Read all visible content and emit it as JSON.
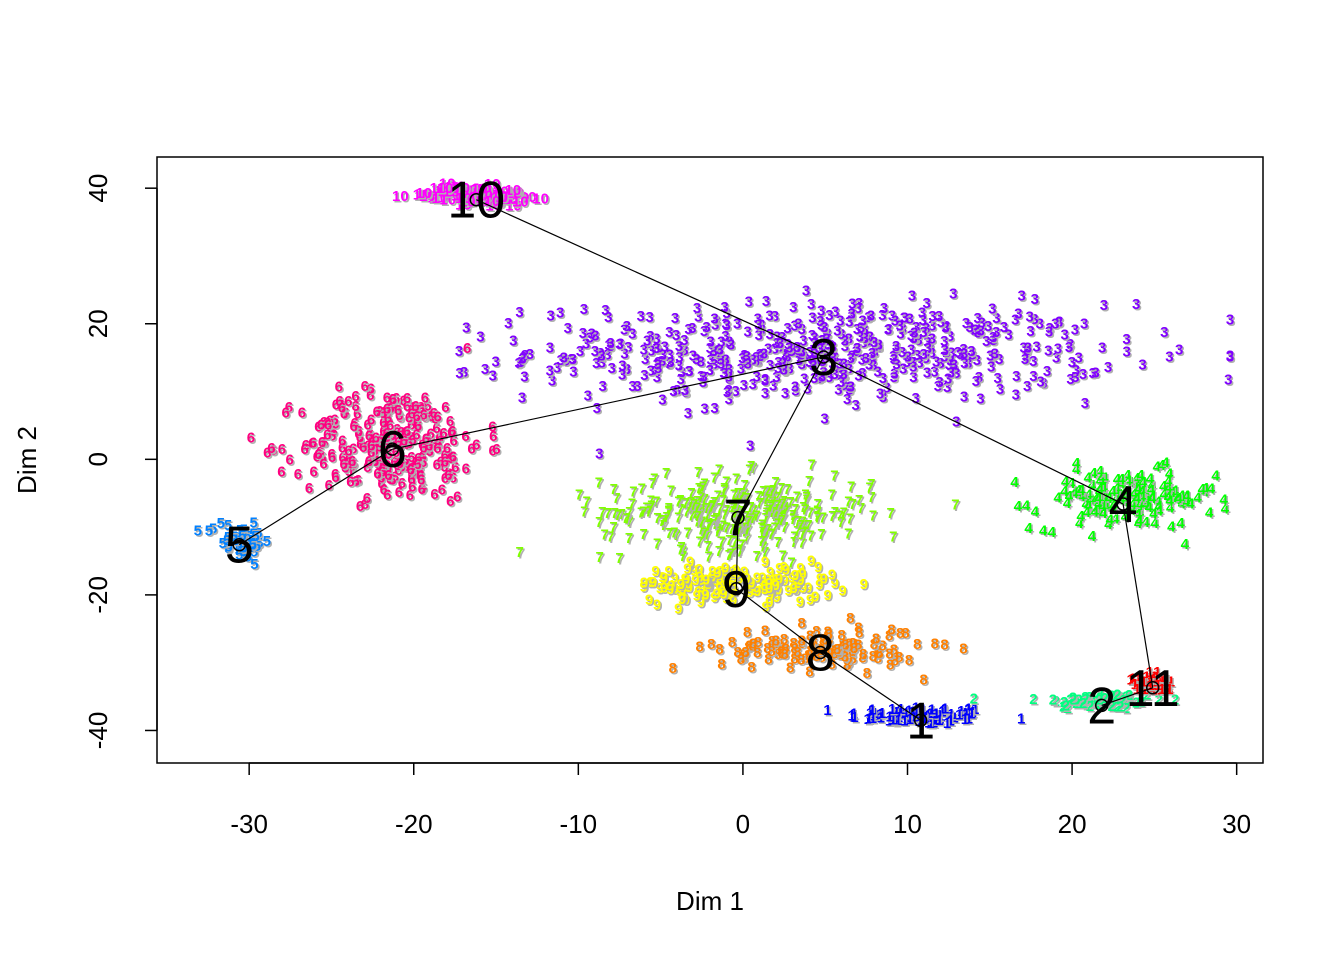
{
  "chart_data": {
    "type": "scatter",
    "title": "",
    "xlabel": "Dim 1",
    "ylabel": "Dim 2",
    "xlim": [
      -35.6,
      31.6
    ],
    "ylim": [
      -44.8,
      44.6
    ],
    "x_ticks": [
      -30,
      -20,
      -10,
      0,
      10,
      20,
      30
    ],
    "y_ticks": [
      -40,
      -20,
      0,
      20,
      40
    ],
    "grid": false,
    "legend": "none",
    "clusters": [
      {
        "label": "1",
        "color": "#0000FF",
        "center": [
          10.8,
          -38.5
        ],
        "spread": [
          4.0,
          1.2
        ],
        "n": 90
      },
      {
        "label": "2",
        "color": "#00FF80",
        "center": [
          21.8,
          -36.3
        ],
        "spread": [
          3.5,
          1.2
        ],
        "n": 60
      },
      {
        "label": "3",
        "color": "#8000FF",
        "center": [
          4.9,
          15.1
        ],
        "spread": [
          16.0,
          6.5
        ],
        "n": 520
      },
      {
        "label": "4",
        "color": "#00FF00",
        "center": [
          23.1,
          -6.6
        ],
        "spread": [
          5.0,
          4.0
        ],
        "n": 150
      },
      {
        "label": "5",
        "color": "#0080FF",
        "center": [
          -30.6,
          -12.6
        ],
        "spread": [
          1.8,
          2.5
        ],
        "n": 45
      },
      {
        "label": "6",
        "color": "#FF0080",
        "center": [
          -21.3,
          1.5
        ],
        "spread": [
          5.0,
          7.5
        ],
        "n": 270
      },
      {
        "label": "7",
        "color": "#80FF00",
        "center": [
          -0.3,
          -8.6
        ],
        "spread": [
          7.5,
          5.0
        ],
        "n": 290
      },
      {
        "label": "8",
        "color": "#FF8000",
        "center": [
          4.7,
          -28.5
        ],
        "spread": [
          5.5,
          3.0
        ],
        "n": 120
      },
      {
        "label": "9",
        "color": "#FFFF00",
        "center": [
          -0.4,
          -19.1
        ],
        "spread": [
          5.5,
          2.5
        ],
        "n": 150
      },
      {
        "label": "10",
        "color": "#FF00FF",
        "center": [
          -16.2,
          38.3
        ],
        "spread": [
          2.8,
          1.2
        ],
        "n": 80
      },
      {
        "label": "11",
        "color": "#FF0000",
        "center": [
          24.9,
          -33.7
        ],
        "spread": [
          1.0,
          1.0
        ],
        "n": 30
      }
    ],
    "trajectory_edges": [
      [
        "10",
        "3"
      ],
      [
        "3",
        "6"
      ],
      [
        "6",
        "5"
      ],
      [
        "3",
        "4"
      ],
      [
        "3",
        "7"
      ],
      [
        "7",
        "9"
      ],
      [
        "9",
        "8"
      ],
      [
        "8",
        "1"
      ],
      [
        "4",
        "11"
      ],
      [
        "11",
        "2"
      ]
    ]
  }
}
